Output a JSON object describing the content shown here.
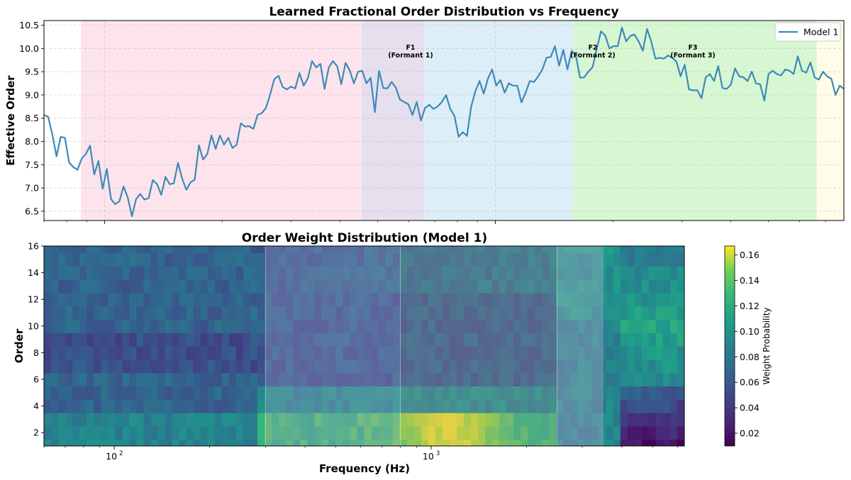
{
  "chart_data": [
    {
      "type": "line",
      "title": "Learned Fractional Order Distribution vs Frequency",
      "xlabel": "",
      "ylabel": "Effective Order",
      "x_scale": "log",
      "xlim": [
        70,
        7800
      ],
      "ylim": [
        6.3,
        10.6
      ],
      "y_ticks": [
        "6.5",
        "7.0",
        "7.5",
        "8.0",
        "8.5",
        "9.0",
        "9.5",
        "10.0",
        "10.5"
      ],
      "grid": true,
      "legend": {
        "position": "top-right",
        "entries": [
          "Model 1"
        ]
      },
      "line_color": "#3d89b8",
      "series": [
        {
          "name": "Model 1",
          "y": [
            8.57,
            8.53,
            8.15,
            7.68,
            8.1,
            8.08,
            7.55,
            7.45,
            7.39,
            7.63,
            7.73,
            7.91,
            7.29,
            7.58,
            6.98,
            7.41,
            6.76,
            6.65,
            6.71,
            7.03,
            6.8,
            6.39,
            6.76,
            6.87,
            6.75,
            6.78,
            7.17,
            7.08,
            6.85,
            7.24,
            7.08,
            7.1,
            7.54,
            7.2,
            6.96,
            7.12,
            7.18,
            7.92,
            7.61,
            7.73,
            8.13,
            7.84,
            8.13,
            7.93,
            8.08,
            7.86,
            7.93,
            8.39,
            8.32,
            8.33,
            8.27,
            8.57,
            8.61,
            8.72,
            9.01,
            9.34,
            9.41,
            9.17,
            9.12,
            9.18,
            9.14,
            9.47,
            9.2,
            9.36,
            9.73,
            9.59,
            9.67,
            9.13,
            9.59,
            9.73,
            9.62,
            9.23,
            9.69,
            9.53,
            9.25,
            9.5,
            9.52,
            9.25,
            9.37,
            8.63,
            9.52,
            9.15,
            9.14,
            9.28,
            9.16,
            8.9,
            8.85,
            8.8,
            8.57,
            8.85,
            8.45,
            8.72,
            8.79,
            8.7,
            8.75,
            8.85,
            9.0,
            8.7,
            8.55,
            8.1,
            8.2,
            8.12,
            8.75,
            9.08,
            9.3,
            9.03,
            9.35,
            9.55,
            9.2,
            9.32,
            9.05,
            9.25,
            9.2,
            9.2,
            8.84,
            9.05,
            9.3,
            9.28,
            9.4,
            9.55,
            9.8,
            9.82,
            10.05,
            9.63,
            9.97,
            9.55,
            9.95,
            9.85,
            9.37,
            9.38,
            9.5,
            9.6,
            10.0,
            10.37,
            10.28,
            10.0,
            10.05,
            10.05,
            10.45,
            10.15,
            10.27,
            10.3,
            10.15,
            9.95,
            10.42,
            10.15,
            9.78,
            9.8,
            9.78,
            9.85,
            9.8,
            9.72,
            9.4,
            9.65,
            9.12,
            9.1,
            9.1,
            8.93,
            9.38,
            9.45,
            9.3,
            9.62,
            9.15,
            9.13,
            9.22,
            9.57,
            9.4,
            9.38,
            9.3,
            9.5,
            9.25,
            9.23,
            8.88,
            9.45,
            9.52,
            9.45,
            9.42,
            9.55,
            9.52,
            9.45,
            9.83,
            9.52,
            9.48,
            9.7,
            9.38,
            9.33,
            9.5,
            9.4,
            9.35,
            9.0,
            9.2,
            9.13
          ]
        }
      ],
      "shaded_regions": [
        {
          "from_hz": 87,
          "to_hz": 455,
          "color": "#fde4ec",
          "label": ""
        },
        {
          "from_hz": 455,
          "to_hz": 658,
          "color": "#e6e0ee",
          "label": ""
        },
        {
          "from_hz": 658,
          "to_hz": 1580,
          "color": "#ddeef8",
          "label": "F1",
          "sublabel": "(Formant 1)"
        },
        {
          "from_hz": 1580,
          "to_hz": 6650,
          "color": "#d7f7d3",
          "label": "F2",
          "sublabel": "(Formant 2)"
        },
        {
          "from_hz": 6650,
          "to_hz": 10100,
          "color": "#fffde8",
          "label": "F3",
          "sublabel": "(Formant 3)"
        }
      ]
    },
    {
      "type": "heatmap",
      "title": "Order Weight Distribution (Model 1)",
      "xlabel": "Frequency (Hz)",
      "ylabel": "Order",
      "x_scale": "log",
      "x_ticks": [
        {
          "value": 100,
          "base": "10",
          "exp": "2"
        },
        {
          "value": 1000,
          "base": "10",
          "exp": "3"
        }
      ],
      "y_ticks": [
        "2",
        "4",
        "6",
        "8",
        "10",
        "12",
        "14",
        "16"
      ],
      "ylim": [
        1,
        16
      ],
      "colormap": "viridis",
      "colorbar": {
        "label": "Weight Probability",
        "range": [
          0.01,
          0.167
        ],
        "ticks": [
          "0.02",
          "0.04",
          "0.06",
          "0.08",
          "0.10",
          "0.12",
          "0.14",
          "0.16"
        ]
      },
      "overlays": [
        {
          "from_hz": 300,
          "to_hz": 800,
          "color": "#b39fcf"
        },
        {
          "from_hz": 800,
          "to_hz": 2500,
          "color": "#9a9a9a"
        },
        {
          "from_hz": 2500,
          "to_hz": 3500,
          "color": "#dcb8e0"
        }
      ],
      "profiles": {
        "low_freq_high_orders": 0.055,
        "low_orders_peak_band_hz": [
          900,
          1500
        ],
        "low_orders_peak_value": 0.165,
        "high_freq_mid_orders": 0.1,
        "high_freq_low_orders": 0.015
      }
    }
  ]
}
